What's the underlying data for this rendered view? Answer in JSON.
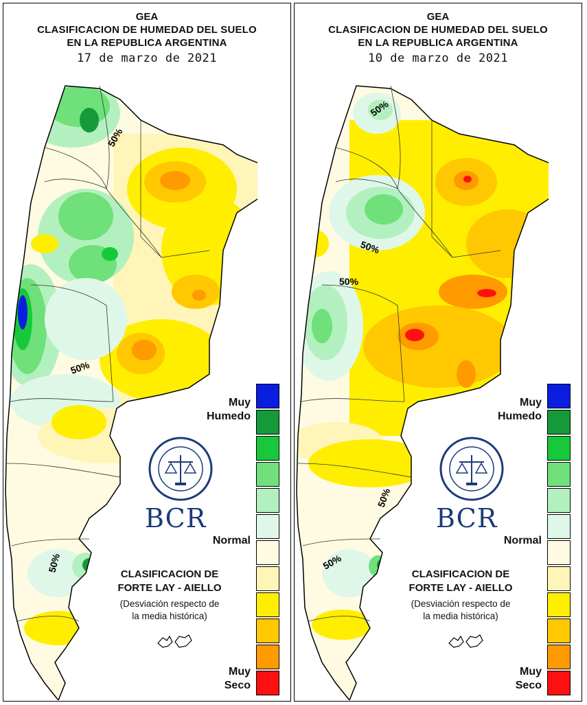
{
  "panels": [
    {
      "header": {
        "line1": "GEA",
        "line2": "CLASIFICACION DE HUMEDAD DEL SUELO",
        "line3": "EN LA REPUBLICA ARGENTINA",
        "date": "17 de marzo de 2021"
      },
      "contour_labels": [
        "50%",
        "50%",
        "50%"
      ],
      "legend": {
        "top_label_1": "Muy",
        "top_label_2": "Humedo",
        "mid_label": "Normal",
        "bottom_label_1": "Muy",
        "bottom_label_2": "Seco"
      },
      "logo_text": "BCR",
      "classification_1": "CLASIFICACION DE",
      "classification_2": "FORTE LAY - AIELLO",
      "deviation_1": "(Desviación respecto de",
      "deviation_2": "la media histórica)"
    },
    {
      "header": {
        "line1": "GEA",
        "line2": "CLASIFICACION DE HUMEDAD DEL SUELO",
        "line3": "EN LA REPUBLICA ARGENTINA",
        "date": "10 de marzo de 2021"
      },
      "contour_labels": [
        "50%",
        "50%",
        "50%",
        "50%",
        "50%"
      ],
      "legend": {
        "top_label_1": "Muy",
        "top_label_2": "Humedo",
        "mid_label": "Normal",
        "bottom_label_1": "Muy",
        "bottom_label_2": "Seco"
      },
      "logo_text": "BCR",
      "classification_1": "CLASIFICACION DE",
      "classification_2": "FORTE LAY - AIELLO",
      "deviation_1": "(Desviación respecto de",
      "deviation_2": "la media histórica)"
    }
  ],
  "legend_colors": [
    "#0a1ee0",
    "#159a3a",
    "#17c93a",
    "#6fe07a",
    "#b3f0bf",
    "#dff7e8",
    "#fffbe2",
    "#fff5b8",
    "#ffee00",
    "#ffc800",
    "#ff9a00",
    "#ff1010"
  ],
  "colors": {
    "muy_humedo": "#0a1ee0",
    "normal": "#fffbe2",
    "muy_seco": "#ff1010",
    "logo_blue": "#1b3a78"
  }
}
